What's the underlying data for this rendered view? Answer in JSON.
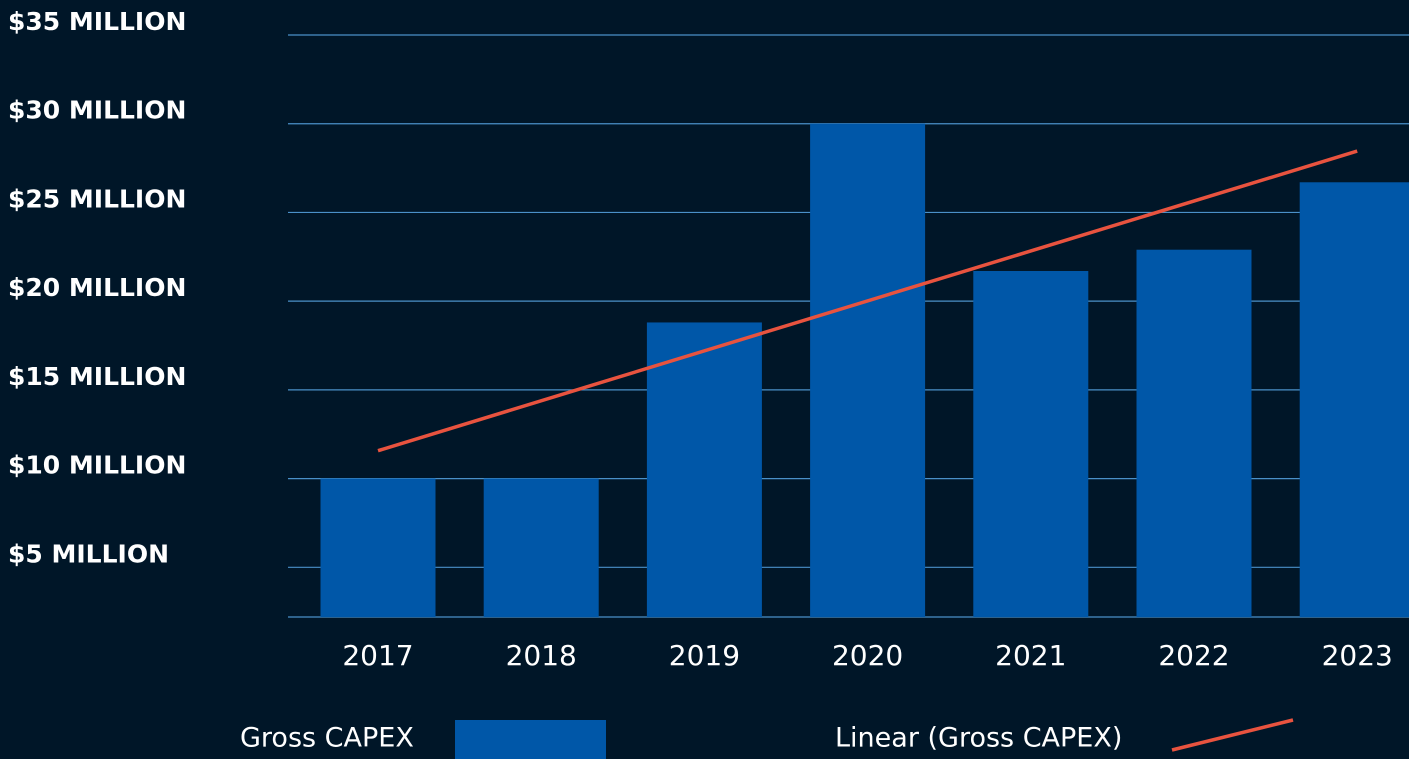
{
  "chart_data": {
    "type": "bar",
    "categories": [
      "2017",
      "2018",
      "2019",
      "2020",
      "2021",
      "2022",
      "2023"
    ],
    "series": [
      {
        "name": "Gross CAPEX",
        "color": "#0057a8",
        "values": [
          10,
          10,
          18.8,
          30,
          21.7,
          22.9,
          26.7
        ]
      }
    ],
    "trendline": {
      "name": "Linear (Gross CAPEX)",
      "color": "#e8533f",
      "fit": "linear"
    },
    "ylim": [
      2.2,
      35
    ],
    "yticks": [
      {
        "value": 5,
        "label": "$5 MILLION"
      },
      {
        "value": 10,
        "label": "$10 MILLION"
      },
      {
        "value": 15,
        "label": "$15 MILLION"
      },
      {
        "value": 20,
        "label": "$20 MILLION"
      },
      {
        "value": 25,
        "label": "$25 MILLION"
      },
      {
        "value": 30,
        "label": "$30 MILLION"
      },
      {
        "value": 35,
        "label": "$35 MILLION"
      }
    ],
    "grid": true
  }
}
